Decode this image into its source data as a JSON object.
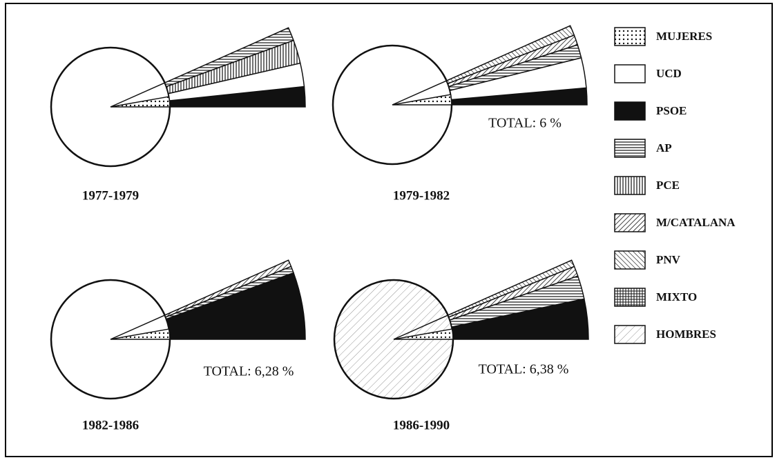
{
  "legend": [
    "MUJERES",
    "UCD",
    "PSOE",
    "AP",
    "PCE",
    "M/CATALANA",
    "PNV",
    "MIXTO",
    "HOMBRES"
  ],
  "panels": [
    {
      "label": "1977-1979"
    },
    {
      "label": "1979-1982",
      "total": "TOTAL: 6 %"
    },
    {
      "label": "1982-1986",
      "total": "TOTAL: 6,28 %"
    },
    {
      "label": "1986-1990",
      "total": "TOTAL: 6,38 %"
    }
  ]
}
